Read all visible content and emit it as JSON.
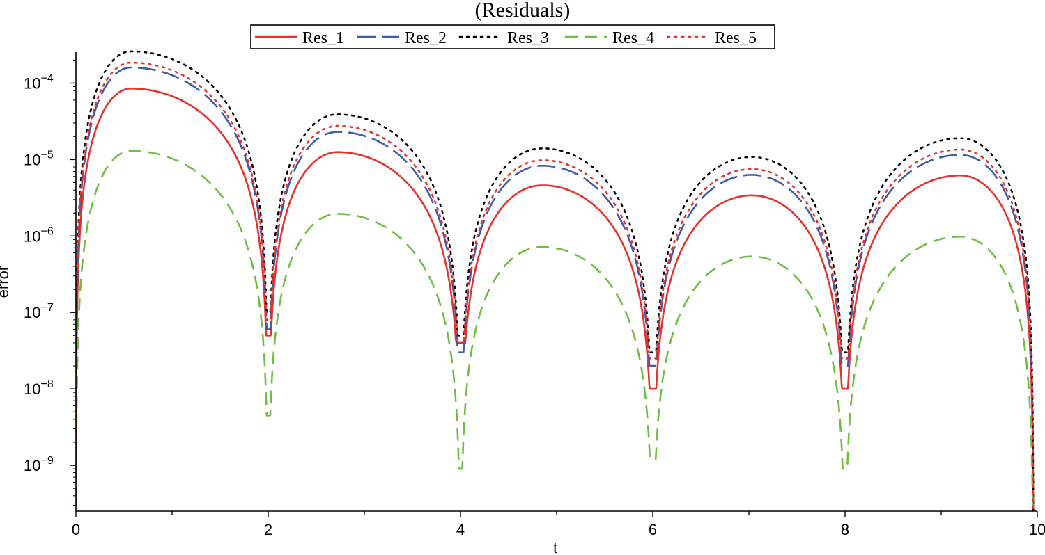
{
  "chart_data": {
    "type": "line",
    "title": "(Residuals)",
    "xlabel": "t",
    "ylabel": "error",
    "xlim": [
      0,
      10
    ],
    "ylim_log10": [
      -9.6,
      -3.55
    ],
    "yscale": "log",
    "grid": false,
    "legend_position": "top-center",
    "x_ticks": [
      {
        "value": 0,
        "label": "0"
      },
      {
        "value": 2,
        "label": "2"
      },
      {
        "value": 4,
        "label": "4"
      },
      {
        "value": 6,
        "label": "6"
      },
      {
        "value": 8,
        "label": "8"
      },
      {
        "value": 10,
        "label": "10"
      }
    ],
    "y_ticks": [
      {
        "exp": -4,
        "base": "10",
        "sup": "−4"
      },
      {
        "exp": -5,
        "base": "10",
        "sup": "−5"
      },
      {
        "exp": -6,
        "base": "10",
        "sup": "−6"
      },
      {
        "exp": -7,
        "base": "10",
        "sup": "−7"
      },
      {
        "exp": -8,
        "base": "10",
        "sup": "−8"
      },
      {
        "exp": -9,
        "base": "10",
        "sup": "−9"
      }
    ],
    "zeros": [
      0,
      2,
      4,
      6,
      8,
      9.96
    ],
    "series": [
      {
        "name": "Res_1",
        "color": "#e8312a",
        "dash": "solid",
        "peaks": [
          {
            "t": 0.57,
            "value": 8.5e-05
          },
          {
            "t": 2.72,
            "value": 1.25e-05
          },
          {
            "t": 4.85,
            "value": 4.6e-06
          },
          {
            "t": 7.03,
            "value": 3.4e-06
          },
          {
            "t": 9.2,
            "value": 6.2e-06
          }
        ],
        "minima": [
          5e-09,
          5e-08,
          4e-08,
          1e-08,
          1e-08,
          1e-10
        ]
      },
      {
        "name": "Res_2",
        "color": "#3f5ba9",
        "dash": "longdash",
        "peaks": [
          {
            "t": 0.57,
            "value": 0.00016
          },
          {
            "t": 2.72,
            "value": 2.3e-05
          },
          {
            "t": 4.85,
            "value": 8.3e-06
          },
          {
            "t": 7.03,
            "value": 6.3e-06
          },
          {
            "t": 9.2,
            "value": 1.15e-05
          }
        ],
        "minima": [
          3e-10,
          6e-08,
          3e-08,
          2e-08,
          2e-08,
          1e-10
        ]
      },
      {
        "name": "Res_3",
        "color": "#000000",
        "dash": "dot",
        "peaks": [
          {
            "t": 0.57,
            "value": 0.00026
          },
          {
            "t": 2.72,
            "value": 3.9e-05
          },
          {
            "t": 4.85,
            "value": 1.4e-05
          },
          {
            "t": 7.03,
            "value": 1.08e-05
          },
          {
            "t": 9.2,
            "value": 1.9e-05
          }
        ],
        "minima": [
          1e-09,
          1e-07,
          5e-08,
          3e-08,
          3e-08,
          1e-10
        ]
      },
      {
        "name": "Res_4",
        "color": "#6fbe44",
        "dash": "dash",
        "peaks": [
          {
            "t": 0.57,
            "value": 1.3e-05
          },
          {
            "t": 2.72,
            "value": 1.95e-06
          },
          {
            "t": 4.85,
            "value": 7.2e-07
          },
          {
            "t": 7.03,
            "value": 5.4e-07
          },
          {
            "t": 9.2,
            "value": 9.8e-07
          }
        ],
        "minima": [
          3e-10,
          4.5e-09,
          9e-10,
          1.2e-09,
          9e-10,
          2.5e-10
        ]
      },
      {
        "name": "Res_5",
        "color": "#e8312a",
        "dash": "dot",
        "peaks": [
          {
            "t": 0.57,
            "value": 0.000185
          },
          {
            "t": 2.72,
            "value": 2.75e-05
          },
          {
            "t": 4.85,
            "value": 9.8e-06
          },
          {
            "t": 7.03,
            "value": 7.5e-06
          },
          {
            "t": 9.2,
            "value": 1.35e-05
          }
        ],
        "minima": [
          1e-09,
          8e-08,
          4e-08,
          2.5e-08,
          2.5e-08,
          1e-10
        ]
      }
    ]
  }
}
